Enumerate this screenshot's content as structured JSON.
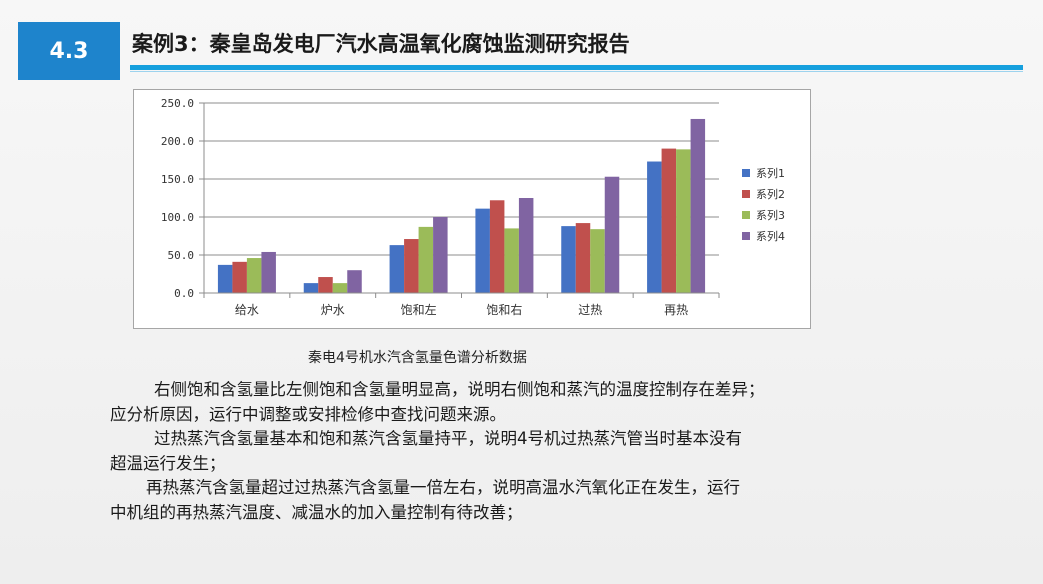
{
  "header": {
    "section_number": "4.3",
    "title": "案例3：秦皇岛发电厂汽水高温氧化腐蚀监测研究报告"
  },
  "colors": {
    "badge": "#1e84cc",
    "accent_rule": "#16a0de"
  },
  "chart_data": {
    "type": "bar",
    "categories": [
      "给水",
      "炉水",
      "饱和左",
      "饱和右",
      "过热",
      "再热"
    ],
    "series": [
      {
        "name": "系列1",
        "color": "#4472c4",
        "values": [
          37,
          13,
          63,
          111,
          88,
          173
        ]
      },
      {
        "name": "系列2",
        "color": "#c0504d",
        "values": [
          41,
          21,
          71,
          122,
          92,
          190
        ]
      },
      {
        "name": "系列3",
        "color": "#9bbb59",
        "values": [
          46,
          13,
          87,
          85,
          84,
          189
        ]
      },
      {
        "name": "系列4",
        "color": "#8064a2",
        "values": [
          54,
          30,
          100,
          125,
          153,
          229
        ]
      }
    ],
    "ylim": [
      0,
      250
    ],
    "yticks": [
      "0.0",
      "50.0",
      "100.0",
      "150.0",
      "200.0",
      "250.0"
    ],
    "legend_position": "right",
    "grid": true
  },
  "caption": "秦电4号机水汽含氢量色谱分析数据",
  "paragraphs": [
    "右侧饱和含氢量比左侧饱和含氢量明显高，说明右侧饱和蒸汽的温度控制存在差异；",
    "应分析原因，运行中调整或安排检修中查找问题来源。",
    "过热蒸汽含氢量基本和饱和蒸汽含氢量持平，说明4号机过热蒸汽管当时基本没有",
    "超温运行发生；",
    "再热蒸汽含氢量超过过热蒸汽含氢量一倍左右，说明高温水汽氧化正在发生，运行",
    "中机组的再热蒸汽温度、减温水的加入量控制有待改善；"
  ]
}
